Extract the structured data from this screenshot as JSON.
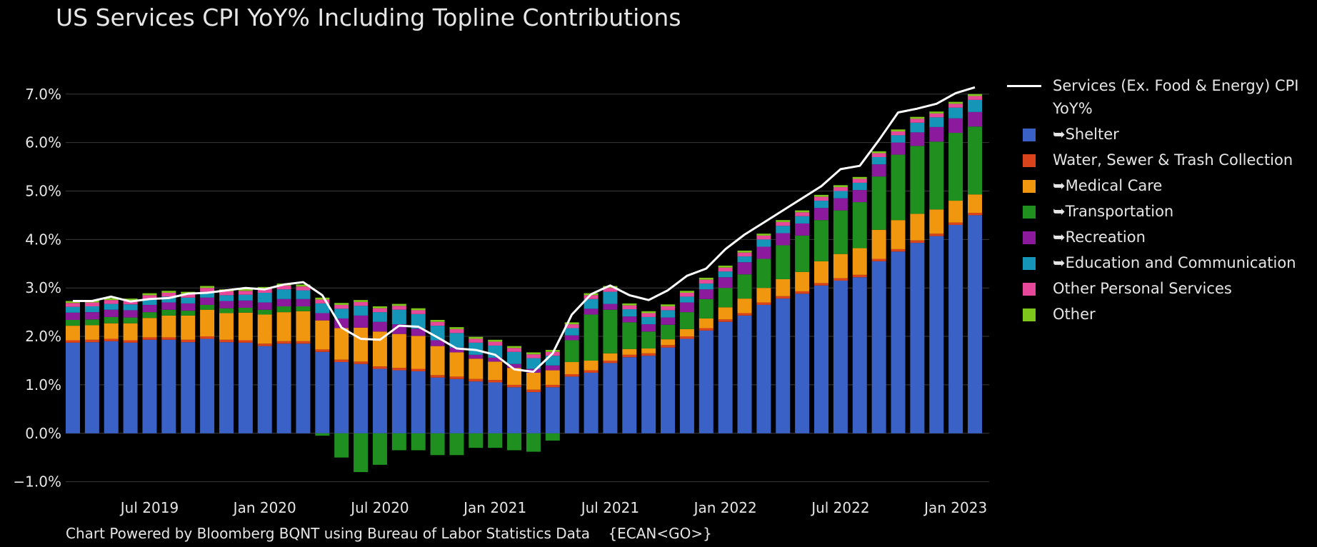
{
  "chart_data": {
    "type": "bar",
    "stacked": true,
    "title": "US Services CPI YoY% Including Topline Contributions",
    "footer": "Chart Powered by Bloomberg BQNT using Bureau of Labor Statistics Data    {ECAN<GO>}",
    "categories": [
      null,
      null,
      null,
      null,
      "Jul 2019",
      null,
      null,
      null,
      null,
      null,
      "Jan 2020",
      null,
      null,
      null,
      null,
      null,
      "Jul 2020",
      null,
      null,
      null,
      null,
      null,
      "Jan 2021",
      null,
      null,
      null,
      null,
      null,
      "Jul 2021",
      null,
      null,
      null,
      null,
      null,
      "Jan 2022",
      null,
      null,
      null,
      null,
      null,
      "Jul 2022",
      null,
      null,
      null,
      null,
      null,
      "Jan 2023",
      null
    ],
    "ylim": [
      -1.3,
      7.35
    ],
    "yticks": [
      {
        "value": -1,
        "label": "−1.0%"
      },
      {
        "value": 0,
        "label": "0.0%"
      },
      {
        "value": 1,
        "label": "1.0%"
      },
      {
        "value": 2,
        "label": "2.0%"
      },
      {
        "value": 3,
        "label": "3.0%"
      },
      {
        "value": 4,
        "label": "4.0%"
      },
      {
        "value": 5,
        "label": "5.0%"
      },
      {
        "value": 6,
        "label": "6.0%"
      },
      {
        "value": 7,
        "label": "7.0%"
      }
    ],
    "grid": true,
    "legend": "right",
    "series": [
      {
        "name": "Services (Ex. Food & Energy) CPI YoY%",
        "type": "line",
        "color": "#ffffff",
        "values": [
          2.73,
          2.73,
          2.82,
          2.72,
          2.77,
          2.79,
          2.88,
          2.9,
          2.95,
          3.0,
          2.97,
          3.07,
          3.12,
          2.85,
          2.18,
          1.95,
          1.93,
          2.22,
          2.2,
          1.98,
          1.75,
          1.72,
          1.62,
          1.32,
          1.27,
          1.65,
          2.45,
          2.87,
          3.05,
          2.85,
          2.75,
          2.95,
          3.25,
          3.4,
          3.8,
          4.1,
          4.35,
          4.6,
          4.85,
          5.1,
          5.45,
          5.52,
          6.05,
          6.62,
          6.7,
          6.8,
          7.02,
          7.14
        ]
      },
      {
        "name": "➥Shelter",
        "color": "#3a62c6",
        "values": [
          1.87,
          1.88,
          1.9,
          1.87,
          1.93,
          1.93,
          1.88,
          1.95,
          1.88,
          1.87,
          1.8,
          1.85,
          1.85,
          1.68,
          1.47,
          1.43,
          1.33,
          1.3,
          1.28,
          1.15,
          1.12,
          1.07,
          1.05,
          0.95,
          0.85,
          0.95,
          1.17,
          1.25,
          1.45,
          1.57,
          1.6,
          1.77,
          1.95,
          2.12,
          2.3,
          2.43,
          2.65,
          2.78,
          2.88,
          3.05,
          3.15,
          3.22,
          3.55,
          3.75,
          3.93,
          4.07,
          4.3,
          4.5
        ]
      },
      {
        "name": "Water, Sewer & Trash Collection",
        "color": "#d9441c",
        "values": [
          0.05,
          0.05,
          0.05,
          0.05,
          0.05,
          0.05,
          0.05,
          0.05,
          0.05,
          0.05,
          0.05,
          0.05,
          0.05,
          0.05,
          0.05,
          0.05,
          0.05,
          0.05,
          0.05,
          0.05,
          0.05,
          0.05,
          0.05,
          0.05,
          0.05,
          0.05,
          0.05,
          0.05,
          0.05,
          0.05,
          0.05,
          0.05,
          0.05,
          0.05,
          0.05,
          0.05,
          0.05,
          0.05,
          0.05,
          0.05,
          0.05,
          0.05,
          0.05,
          0.05,
          0.05,
          0.05,
          0.05,
          0.05
        ]
      },
      {
        "name": "➥Medical Care",
        "color": "#f0960f",
        "values": [
          0.3,
          0.3,
          0.32,
          0.35,
          0.4,
          0.45,
          0.5,
          0.55,
          0.55,
          0.57,
          0.6,
          0.6,
          0.62,
          0.6,
          0.65,
          0.7,
          0.72,
          0.7,
          0.68,
          0.6,
          0.5,
          0.42,
          0.38,
          0.35,
          0.35,
          0.3,
          0.25,
          0.2,
          0.15,
          0.12,
          0.1,
          0.12,
          0.15,
          0.2,
          0.25,
          0.3,
          0.3,
          0.35,
          0.4,
          0.45,
          0.5,
          0.55,
          0.6,
          0.6,
          0.55,
          0.5,
          0.45,
          0.38
        ]
      },
      {
        "name": "➥Transportation",
        "color": "#1f8f1f",
        "values": [
          0.12,
          0.12,
          0.13,
          0.12,
          0.12,
          0.12,
          0.1,
          0.1,
          0.1,
          0.1,
          0.1,
          0.12,
          0.1,
          -0.05,
          -0.5,
          -0.8,
          -0.65,
          -0.35,
          -0.35,
          -0.45,
          -0.45,
          -0.3,
          -0.3,
          -0.35,
          -0.38,
          -0.15,
          0.45,
          0.95,
          0.9,
          0.55,
          0.35,
          0.3,
          0.35,
          0.4,
          0.4,
          0.5,
          0.6,
          0.7,
          0.75,
          0.85,
          0.9,
          0.95,
          1.1,
          1.35,
          1.4,
          1.4,
          1.4,
          1.4
        ]
      },
      {
        "name": "➥Recreation",
        "color": "#8c1a9c",
        "values": [
          0.15,
          0.15,
          0.15,
          0.15,
          0.15,
          0.15,
          0.15,
          0.15,
          0.15,
          0.15,
          0.15,
          0.15,
          0.15,
          0.15,
          0.2,
          0.25,
          0.2,
          0.2,
          0.15,
          0.12,
          0.1,
          0.08,
          0.08,
          0.08,
          0.08,
          0.1,
          0.1,
          0.12,
          0.12,
          0.12,
          0.15,
          0.15,
          0.2,
          0.2,
          0.22,
          0.25,
          0.25,
          0.25,
          0.25,
          0.25,
          0.25,
          0.25,
          0.25,
          0.25,
          0.28,
          0.3,
          0.3,
          0.3
        ]
      },
      {
        "name": "➥Education and Communication",
        "color": "#1596b8",
        "values": [
          0.12,
          0.12,
          0.12,
          0.12,
          0.12,
          0.12,
          0.12,
          0.12,
          0.12,
          0.12,
          0.2,
          0.2,
          0.18,
          0.2,
          0.2,
          0.2,
          0.2,
          0.3,
          0.3,
          0.3,
          0.3,
          0.25,
          0.25,
          0.25,
          0.22,
          0.2,
          0.15,
          0.2,
          0.25,
          0.15,
          0.15,
          0.15,
          0.12,
          0.12,
          0.12,
          0.12,
          0.15,
          0.15,
          0.15,
          0.15,
          0.15,
          0.15,
          0.15,
          0.15,
          0.2,
          0.2,
          0.22,
          0.25
        ]
      },
      {
        "name": "Other Personal Services",
        "color": "#e8489a",
        "values": [
          0.08,
          0.08,
          0.08,
          0.08,
          0.08,
          0.08,
          0.08,
          0.08,
          0.08,
          0.08,
          0.08,
          0.08,
          0.08,
          0.08,
          0.08,
          0.08,
          0.08,
          0.08,
          0.08,
          0.08,
          0.08,
          0.08,
          0.08,
          0.08,
          0.08,
          0.08,
          0.08,
          0.08,
          0.08,
          0.08,
          0.08,
          0.08,
          0.08,
          0.08,
          0.08,
          0.08,
          0.08,
          0.08,
          0.08,
          0.08,
          0.08,
          0.08,
          0.08,
          0.08,
          0.08,
          0.08,
          0.08,
          0.08
        ]
      },
      {
        "name": "Other",
        "color": "#7ec61b",
        "values": [
          0.04,
          0.04,
          0.04,
          0.04,
          0.04,
          0.04,
          0.04,
          0.04,
          0.04,
          0.04,
          0.04,
          0.04,
          0.04,
          0.04,
          0.04,
          0.04,
          0.04,
          0.04,
          0.04,
          0.04,
          0.04,
          0.04,
          0.04,
          0.04,
          0.04,
          0.04,
          0.04,
          0.04,
          0.04,
          0.04,
          0.04,
          0.04,
          0.04,
          0.04,
          0.04,
          0.04,
          0.04,
          0.04,
          0.04,
          0.04,
          0.04,
          0.04,
          0.04,
          0.04,
          0.04,
          0.04,
          0.04,
          0.04
        ]
      }
    ]
  }
}
